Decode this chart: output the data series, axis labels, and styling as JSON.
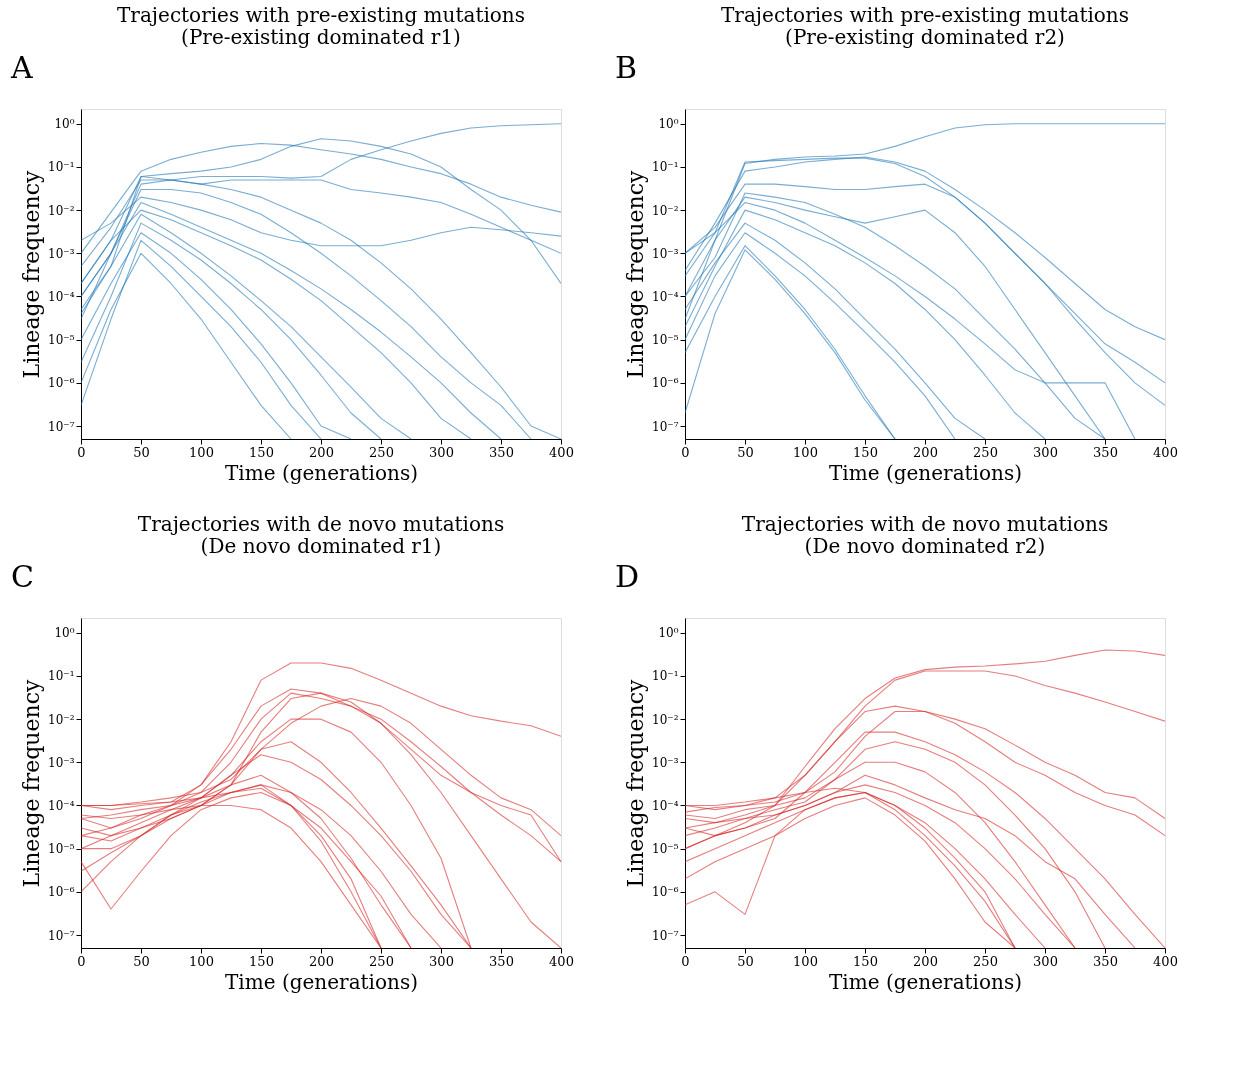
{
  "chart_data": [
    {
      "type": "line",
      "title": "Trajectories with pre-existing mutations\n(Pre-existing dominated r1)",
      "annotations": [
        "A"
      ],
      "xlabel": "Time (generations)",
      "ylabel": "Lineage frequency",
      "log": "y",
      "grid": false,
      "xlim": [
        0,
        400
      ],
      "xticks": [
        0,
        50,
        100,
        150,
        200,
        250,
        300,
        350,
        400
      ],
      "ylim": [
        5e-08,
        2.2
      ],
      "yticks": [
        {
          "value": 1e-07,
          "label": "10⁻⁷"
        },
        {
          "value": 1e-06,
          "label": "10⁻⁶"
        },
        {
          "value": 1e-05,
          "label": "10⁻⁵"
        },
        {
          "value": 0.0001,
          "label": "10⁻⁴"
        },
        {
          "value": 0.001,
          "label": "10⁻³"
        },
        {
          "value": 0.01,
          "label": "10⁻²"
        },
        {
          "value": 0.1,
          "label": "10⁻¹"
        },
        {
          "value": 1,
          "label": "10⁰"
        }
      ],
      "x": [
        0,
        25,
        50,
        75,
        100,
        125,
        150,
        175,
        200,
        225,
        250,
        275,
        300,
        325,
        350,
        375,
        400
      ],
      "series": [
        {
          "color": "#1f77b4",
          "values": [
            0.001,
            0.009,
            0.08,
            0.15,
            0.22,
            0.3,
            0.35,
            0.32,
            0.25,
            0.2,
            0.15,
            0.1,
            0.07,
            0.04,
            0.02,
            0.013,
            0.009
          ]
        },
        {
          "color": "#1f77b4",
          "values": [
            3e-05,
            0.001,
            0.04,
            0.05,
            0.06,
            0.06,
            0.06,
            0.055,
            0.06,
            0.15,
            0.25,
            0.4,
            0.6,
            0.8,
            0.9,
            0.95,
            1
          ]
        },
        {
          "color": "#1f77b4",
          "values": [
            0.0002,
            0.002,
            0.06,
            0.07,
            0.08,
            0.1,
            0.15,
            0.3,
            0.45,
            0.4,
            0.3,
            0.2,
            0.1,
            0.03,
            0.01,
            0.002,
            0.0002
          ]
        },
        {
          "color": "#1f77b4",
          "values": [
            0.002,
            0.005,
            0.02,
            0.015,
            0.01,
            0.006,
            0.003,
            0.002,
            0.0015,
            0.0015,
            0.0015,
            0.002,
            0.003,
            0.004,
            0.0035,
            0.003,
            0.0025
          ]
        },
        {
          "color": "#1f77b4",
          "values": [
            0.0001,
            0.001,
            0.015,
            0.008,
            0.004,
            0.002,
            0.001,
            0.0004,
            0.00015,
            5e-05,
            1.5e-05,
            4e-06,
            1e-06,
            2e-07,
            5e-08,
            null,
            null
          ]
        },
        {
          "color": "#1f77b4",
          "values": [
            5e-05,
            0.0005,
            0.008,
            0.003,
            0.001,
            0.0003,
            8e-05,
            2e-05,
            4e-06,
            8e-07,
            1.5e-07,
            5e-08,
            null,
            null,
            null,
            null,
            null
          ]
        },
        {
          "color": "#1f77b4",
          "values": [
            1e-05,
            0.0002,
            0.003,
            0.001,
            0.00025,
            5e-05,
            8e-06,
            1e-06,
            1e-07,
            5e-08,
            null,
            null,
            null,
            null,
            null,
            null,
            null
          ]
        },
        {
          "color": "#1f77b4",
          "values": [
            1e-06,
            5e-05,
            0.001,
            0.0002,
            3e-05,
            3e-06,
            3e-07,
            5e-08,
            null,
            null,
            null,
            null,
            null,
            null,
            null,
            null,
            null
          ]
        },
        {
          "color": "#1f77b4",
          "values": [
            3e-07,
            3e-05,
            0.002,
            0.0005,
            0.0001,
            2e-05,
            3e-06,
            3e-07,
            5e-08,
            null,
            null,
            null,
            null,
            null,
            null,
            null,
            null
          ]
        },
        {
          "color": "#1f77b4",
          "values": [
            0.0005,
            0.004,
            0.05,
            0.05,
            0.04,
            0.03,
            0.02,
            0.01,
            0.005,
            0.002,
            0.0006,
            0.00015,
            3e-05,
            5e-06,
            8e-07,
            1e-07,
            5e-08
          ]
        },
        {
          "color": "#1f77b4",
          "values": [
            0.0002,
            0.002,
            0.01,
            0.006,
            0.003,
            0.0015,
            0.0007,
            0.00025,
            8e-05,
            2e-05,
            5e-06,
            1e-06,
            1.5e-07,
            5e-08,
            null,
            null,
            null
          ]
        },
        {
          "color": "#1f77b4",
          "values": [
            3e-06,
            0.0001,
            0.005,
            0.002,
            0.0007,
            0.0002,
            5e-05,
            1e-05,
            1.5e-06,
            2e-07,
            5e-08,
            null,
            null,
            null,
            null,
            null,
            null
          ]
        },
        {
          "color": "#1f77b4",
          "values": [
            0.0001,
            0.001,
            0.03,
            0.03,
            0.025,
            0.015,
            0.008,
            0.003,
            0.001,
            0.0003,
            8e-05,
            2e-05,
            4e-06,
            1e-06,
            3e-07,
            5e-08,
            null
          ]
        },
        {
          "color": "#1f77b4",
          "values": [
            4e-05,
            0.0005,
            0.06,
            0.05,
            0.04,
            0.05,
            0.05,
            0.05,
            0.05,
            0.03,
            0.025,
            0.02,
            0.015,
            0.008,
            0.004,
            0.002,
            0.001
          ]
        }
      ]
    },
    {
      "type": "line",
      "title": "Trajectories with pre-existing mutations\n(Pre-existing dominated r2)",
      "annotations": [
        "B"
      ],
      "xlabel": "Time (generations)",
      "ylabel": "Lineage frequency",
      "log": "y",
      "grid": false,
      "xlim": [
        0,
        400
      ],
      "xticks": [
        0,
        50,
        100,
        150,
        200,
        250,
        300,
        350,
        400
      ],
      "ylim": [
        5e-08,
        2.2
      ],
      "yticks": [
        {
          "value": 1e-07,
          "label": "10⁻⁷"
        },
        {
          "value": 1e-06,
          "label": "10⁻⁶"
        },
        {
          "value": 1e-05,
          "label": "10⁻⁵"
        },
        {
          "value": 0.0001,
          "label": "10⁻⁴"
        },
        {
          "value": 0.001,
          "label": "10⁻³"
        },
        {
          "value": 0.01,
          "label": "10⁻²"
        },
        {
          "value": 0.1,
          "label": "10⁻¹"
        },
        {
          "value": 1,
          "label": "10⁰"
        }
      ],
      "x": [
        0,
        25,
        50,
        75,
        100,
        125,
        150,
        175,
        200,
        225,
        250,
        275,
        300,
        325,
        350,
        375,
        400
      ],
      "series": [
        {
          "color": "#1f77b4",
          "values": [
            3e-05,
            0.002,
            0.12,
            0.15,
            0.17,
            0.18,
            0.2,
            0.3,
            0.5,
            0.8,
            0.95,
            1,
            1,
            1,
            1,
            1,
            1
          ]
        },
        {
          "color": "#1f77b4",
          "values": [
            0.0004,
            0.005,
            0.08,
            0.1,
            0.13,
            0.15,
            0.17,
            0.13,
            0.08,
            0.03,
            0.01,
            0.003,
            0.0008,
            0.0002,
            5e-05,
            2e-05,
            1e-05
          ]
        },
        {
          "color": "#1f77b4",
          "values": [
            0.001,
            0.004,
            0.04,
            0.04,
            0.035,
            0.03,
            0.03,
            0.035,
            0.04,
            0.02,
            0.005,
            0.001,
            0.0002,
            3e-05,
            5e-06,
            1e-06,
            3e-07
          ]
        },
        {
          "color": "#1f77b4",
          "values": [
            0.0001,
            0.002,
            0.02,
            0.015,
            0.01,
            0.007,
            0.005,
            0.007,
            0.01,
            0.003,
            0.0005,
            5e-05,
            5e-06,
            5e-07,
            5e-08,
            null,
            null
          ]
        },
        {
          "color": "#1f77b4",
          "values": [
            2e-05,
            0.0005,
            0.01,
            0.006,
            0.003,
            0.0015,
            0.0006,
            0.0002,
            5e-05,
            1e-05,
            1.5e-06,
            2e-07,
            5e-08,
            null,
            null,
            null,
            null
          ]
        },
        {
          "color": "#1f77b4",
          "values": [
            5e-06,
            0.0001,
            0.0015,
            0.0003,
            5e-05,
            6e-06,
            5e-07,
            5e-08,
            null,
            null,
            null,
            null,
            null,
            null,
            null,
            null,
            null
          ]
        },
        {
          "color": "#1f77b4",
          "values": [
            2e-07,
            4e-05,
            0.0012,
            0.00025,
            4e-05,
            5e-06,
            4e-07,
            5e-08,
            null,
            null,
            null,
            null,
            null,
            null,
            null,
            null,
            null
          ]
        },
        {
          "color": "#1f77b4",
          "values": [
            0.0001,
            0.0008,
            0.025,
            0.02,
            0.015,
            0.008,
            0.004,
            0.0015,
            0.0005,
            0.00015,
            3e-05,
            6e-06,
            1e-06,
            1.5e-07,
            5e-08,
            null,
            null
          ]
        },
        {
          "color": "#1f77b4",
          "values": [
            5e-05,
            0.0006,
            0.005,
            0.002,
            0.0006,
            0.00015,
            3e-05,
            6e-06,
            1e-06,
            1.5e-07,
            5e-08,
            null,
            null,
            null,
            null,
            null,
            null
          ]
        },
        {
          "color": "#1f77b4",
          "values": [
            0.001,
            0.003,
            0.015,
            0.01,
            0.005,
            0.002,
            0.0008,
            0.0003,
            0.0001,
            3e-05,
            8e-06,
            2e-06,
            1e-06,
            1e-06,
            1e-06,
            5e-08,
            null
          ]
        },
        {
          "color": "#1f77b4",
          "values": [
            0.0003,
            0.003,
            0.13,
            0.14,
            0.15,
            0.16,
            0.16,
            0.12,
            0.06,
            0.02,
            0.005,
            0.001,
            0.0002,
            4e-05,
            8e-06,
            3e-06,
            1e-06
          ]
        },
        {
          "color": "#1f77b4",
          "values": [
            1e-05,
            0.0003,
            0.003,
            0.001,
            0.0003,
            7e-05,
            1.5e-05,
            3e-06,
            5e-07,
            5e-08,
            null,
            null,
            null,
            null,
            null,
            null,
            null
          ]
        }
      ]
    },
    {
      "type": "line",
      "title": "Trajectories with de novo mutations\n(De novo dominated r1)",
      "annotations": [
        "C"
      ],
      "xlabel": "Time (generations)",
      "ylabel": "Lineage frequency",
      "log": "y",
      "grid": false,
      "xlim": [
        0,
        400
      ],
      "xticks": [
        0,
        50,
        100,
        150,
        200,
        250,
        300,
        350,
        400
      ],
      "ylim": [
        5e-08,
        2.2
      ],
      "yticks": [
        {
          "value": 1e-07,
          "label": "10⁻⁷"
        },
        {
          "value": 1e-06,
          "label": "10⁻⁶"
        },
        {
          "value": 1e-05,
          "label": "10⁻⁵"
        },
        {
          "value": 0.0001,
          "label": "10⁻⁴"
        },
        {
          "value": 0.001,
          "label": "10⁻³"
        },
        {
          "value": 0.01,
          "label": "10⁻²"
        },
        {
          "value": 0.1,
          "label": "10⁻¹"
        },
        {
          "value": 1,
          "label": "10⁰"
        }
      ],
      "x": [
        0,
        25,
        50,
        75,
        100,
        125,
        150,
        175,
        200,
        225,
        250,
        275,
        300,
        325,
        350,
        375,
        400
      ],
      "series": [
        {
          "color": "#d62728",
          "values": [
            2e-05,
            3e-05,
            5e-05,
            0.0001,
            0.0003,
            0.003,
            0.08,
            0.2,
            0.2,
            0.15,
            0.08,
            0.04,
            0.02,
            0.012,
            0.009,
            0.007,
            0.004
          ]
        },
        {
          "color": "#d62728",
          "values": [
            5e-05,
            3e-05,
            6e-05,
            0.0001,
            0.0002,
            0.001,
            0.01,
            0.04,
            0.03,
            0.02,
            0.01,
            0.003,
            0.0008,
            0.0002,
            6e-05,
            2e-05,
            5e-06
          ]
        },
        {
          "color": "#d62728",
          "values": [
            0.0001,
            0.0001,
            0.00012,
            0.00015,
            0.0002,
            0.0004,
            0.002,
            0.008,
            0.02,
            0.03,
            0.02,
            0.008,
            0.002,
            0.0005,
            0.00015,
            8e-05,
            2e-05
          ]
        },
        {
          "color": "#d62728",
          "values": [
            3e-06,
            8e-06,
            2e-05,
            6e-05,
            0.00015,
            0.0003,
            0.0005,
            0.0002,
            5e-05,
            6e-06,
            5e-07,
            5e-08,
            null,
            null,
            null,
            null,
            null
          ]
        },
        {
          "color": "#d62728",
          "values": [
            1e-05,
            2e-05,
            3e-05,
            6e-05,
            0.0001,
            0.0002,
            0.00025,
            0.0001,
            2e-05,
            2e-06,
            5e-08,
            null,
            null,
            null,
            null,
            null,
            null
          ]
        },
        {
          "color": "#d62728",
          "values": [
            5e-06,
            4e-07,
            3e-06,
            2e-05,
            8e-05,
            0.00015,
            0.0002,
            0.0001,
            3e-05,
            5e-06,
            8e-07,
            5e-08,
            null,
            null,
            null,
            null,
            null
          ]
        },
        {
          "color": "#d62728",
          "values": [
            0.0001,
            8e-05,
            0.0001,
            0.00012,
            0.00015,
            0.0002,
            0.0003,
            0.0002,
            8e-05,
            2e-05,
            3e-06,
            3e-07,
            5e-08,
            null,
            null,
            null,
            null
          ]
        },
        {
          "color": "#d62728",
          "values": [
            3e-05,
            2e-05,
            4e-05,
            8e-05,
            0.00015,
            0.0005,
            0.0015,
            0.001,
            0.0004,
            0.0001,
            2e-05,
            3e-06,
            3e-07,
            5e-08,
            null,
            null,
            null
          ]
        },
        {
          "color": "#d62728",
          "values": [
            6e-05,
            5e-05,
            6e-05,
            8e-05,
            0.0001,
            0.0001,
            8e-05,
            3e-05,
            5e-06,
            5e-07,
            5e-08,
            null,
            null,
            null,
            null,
            null,
            null
          ]
        },
        {
          "color": "#d62728",
          "values": [
            1e-05,
            1e-05,
            2e-05,
            5e-05,
            0.0001,
            0.0003,
            0.005,
            0.03,
            0.04,
            0.025,
            0.008,
            0.0015,
            0.0002,
            2e-05,
            2e-06,
            2e-07,
            5e-08
          ]
        },
        {
          "color": "#d62728",
          "values": [
            2e-05,
            1.5e-05,
            3e-05,
            5e-05,
            0.0001,
            0.0003,
            0.002,
            0.003,
            0.001,
            0.0002,
            3e-05,
            4e-06,
            5e-07,
            5e-08,
            null,
            null,
            null
          ]
        },
        {
          "color": "#d62728",
          "values": [
            1e-06,
            5e-06,
            2e-05,
            6e-05,
            0.00012,
            0.0002,
            0.0003,
            0.0001,
            1.5e-05,
            1e-06,
            5e-08,
            null,
            null,
            null,
            null,
            null,
            null
          ]
        },
        {
          "color": "#d62728",
          "values": [
            5e-05,
            6e-05,
            8e-05,
            0.0001,
            0.00015,
            0.0005,
            0.003,
            0.01,
            0.01,
            0.005,
            0.001,
            0.0001,
            6e-06,
            5e-08,
            null,
            null,
            null
          ]
        },
        {
          "color": "#d62728",
          "values": [
            0.0001,
            0.0001,
            0.00011,
            0.00012,
            0.0003,
            0.002,
            0.02,
            0.05,
            0.04,
            0.02,
            0.008,
            0.002,
            0.0005,
            0.0002,
            0.0001,
            6e-05,
            5e-06
          ]
        }
      ]
    },
    {
      "type": "line",
      "title": "Trajectories with de novo mutations\n(De novo dominated r2)",
      "annotations": [
        "D"
      ],
      "xlabel": "Time (generations)",
      "ylabel": "Lineage frequency",
      "log": "y",
      "grid": false,
      "xlim": [
        0,
        400
      ],
      "xticks": [
        0,
        50,
        100,
        150,
        200,
        250,
        300,
        350,
        400
      ],
      "ylim": [
        5e-08,
        2.2
      ],
      "yticks": [
        {
          "value": 1e-07,
          "label": "10⁻⁷"
        },
        {
          "value": 1e-06,
          "label": "10⁻⁶"
        },
        {
          "value": 1e-05,
          "label": "10⁻⁵"
        },
        {
          "value": 0.0001,
          "label": "10⁻⁴"
        },
        {
          "value": 0.001,
          "label": "10⁻³"
        },
        {
          "value": 0.01,
          "label": "10⁻²"
        },
        {
          "value": 0.1,
          "label": "10⁻¹"
        },
        {
          "value": 1,
          "label": "10⁰"
        }
      ],
      "x": [
        0,
        25,
        50,
        75,
        100,
        125,
        150,
        175,
        200,
        225,
        250,
        275,
        300,
        325,
        350,
        375,
        400
      ],
      "series": [
        {
          "color": "#d62728",
          "values": [
            1e-05,
            2e-05,
            4e-05,
            0.0001,
            0.0008,
            0.006,
            0.03,
            0.09,
            0.14,
            0.16,
            0.17,
            0.19,
            0.22,
            0.3,
            0.4,
            0.38,
            0.3
          ]
        },
        {
          "color": "#d62728",
          "values": [
            3e-05,
            4e-05,
            6e-05,
            0.0001,
            0.0005,
            0.003,
            0.02,
            0.08,
            0.13,
            0.13,
            0.13,
            0.1,
            0.06,
            0.04,
            0.025,
            0.015,
            0.009
          ]
        },
        {
          "color": "#d62728",
          "values": [
            0.0001,
            8e-05,
            0.0001,
            0.00012,
            0.0002,
            0.0006,
            0.004,
            0.015,
            0.015,
            0.01,
            0.006,
            0.0025,
            0.001,
            0.0005,
            0.0002,
            0.00015,
            5e-05
          ]
        },
        {
          "color": "#d62728",
          "values": [
            5e-06,
            1e-05,
            2e-05,
            4e-05,
            8e-05,
            0.00015,
            0.0002,
            0.0001,
            4e-05,
            1e-05,
            2e-06,
            3e-07,
            5e-08,
            null,
            null,
            null,
            null
          ]
        },
        {
          "color": "#d62728",
          "values": [
            5e-07,
            1e-06,
            3e-07,
            2e-05,
            8e-05,
            0.00015,
            0.0002,
            8e-05,
            2e-05,
            4e-06,
            6e-07,
            5e-08,
            null,
            null,
            null,
            null,
            null
          ]
        },
        {
          "color": "#d62728",
          "values": [
            2e-05,
            3e-05,
            5e-05,
            6e-05,
            0.0001,
            0.0002,
            0.0003,
            0.0002,
            0.0001,
            4e-05,
            1e-05,
            2e-06,
            3e-07,
            5e-08,
            null,
            null,
            null
          ]
        },
        {
          "color": "#d62728",
          "values": [
            6e-05,
            5e-05,
            8e-05,
            0.0001,
            0.00015,
            0.0004,
            0.002,
            0.003,
            0.002,
            0.001,
            0.0003,
            6e-05,
            1e-05,
            1e-06,
            5e-08,
            null,
            null
          ]
        },
        {
          "color": "#d62728",
          "values": [
            1e-05,
            2e-05,
            3e-05,
            5e-05,
            0.0002,
            0.001,
            0.005,
            0.005,
            0.003,
            0.0015,
            0.0006,
            0.0002,
            5e-05,
            1e-05,
            2e-06,
            3e-07,
            5e-08
          ]
        },
        {
          "color": "#d62728",
          "values": [
            0.0001,
            0.0001,
            0.00012,
            0.00015,
            0.0002,
            0.00025,
            0.0002,
            0.0001,
            3e-05,
            6e-06,
            1e-06,
            5e-08,
            null,
            null,
            null,
            null,
            null
          ]
        },
        {
          "color": "#d62728",
          "values": [
            2e-06,
            5e-06,
            1e-05,
            2e-05,
            5e-05,
            0.0001,
            0.00015,
            6e-05,
            1.5e-05,
            2e-06,
            2e-07,
            5e-08,
            null,
            null,
            null,
            null,
            null
          ]
        },
        {
          "color": "#d62728",
          "values": [
            5e-05,
            4e-05,
            5e-05,
            8e-05,
            0.00012,
            0.0004,
            0.001,
            0.001,
            0.0006,
            0.0002,
            4e-05,
            5e-06,
            5e-07,
            5e-08,
            null,
            null,
            null
          ]
        },
        {
          "color": "#d62728",
          "values": [
            3e-05,
            2e-05,
            3e-05,
            6e-05,
            0.0001,
            0.0002,
            0.0005,
            0.0003,
            0.00015,
            8e-05,
            5e-05,
            2e-05,
            5e-06,
            2e-06,
            3e-07,
            5e-08,
            null
          ]
        },
        {
          "color": "#d62728",
          "values": [
            7e-05,
            9e-05,
            0.0001,
            0.00015,
            0.0005,
            0.003,
            0.015,
            0.02,
            0.015,
            0.008,
            0.003,
            0.001,
            0.0005,
            0.0002,
            0.0001,
            6e-05,
            2e-05
          ]
        }
      ]
    }
  ]
}
